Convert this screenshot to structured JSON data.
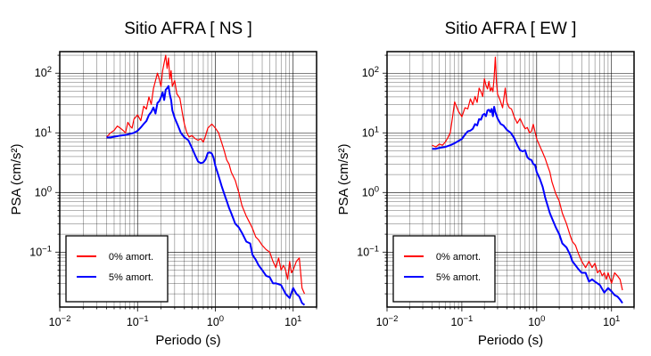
{
  "chart_data": [
    {
      "type": "line",
      "title": "Sitio AFRA [ NS ]",
      "xlabel": "Periodo (s)",
      "ylabel": "PSA (cm/s²)",
      "xscale": "log",
      "yscale": "log",
      "xlim": [
        0.01,
        20
      ],
      "ylim": [
        0.012,
        230
      ],
      "xticks": [
        {
          "v": 0.01,
          "b": "10",
          "e": "−2"
        },
        {
          "v": 0.1,
          "b": "10",
          "e": "−1"
        },
        {
          "v": 1,
          "b": "10",
          "e": "0"
        },
        {
          "v": 10,
          "b": "10",
          "e": "1"
        }
      ],
      "yticks": [
        {
          "v": 0.1,
          "b": "10",
          "e": "−1"
        },
        {
          "v": 1,
          "b": "10",
          "e": "0"
        },
        {
          "v": 10,
          "b": "10",
          "e": "1"
        },
        {
          "v": 100,
          "b": "10",
          "e": "2"
        }
      ],
      "grid": true,
      "legend_position": "bottom-left",
      "series": [
        {
          "name": "0% amort.",
          "color": "#ff0000",
          "x": [
            0.04,
            0.045,
            0.05,
            0.055,
            0.06,
            0.065,
            0.07,
            0.075,
            0.08,
            0.085,
            0.09,
            0.1,
            0.11,
            0.12,
            0.13,
            0.14,
            0.15,
            0.16,
            0.17,
            0.18,
            0.19,
            0.2,
            0.21,
            0.22,
            0.23,
            0.24,
            0.25,
            0.26,
            0.27,
            0.28,
            0.3,
            0.32,
            0.35,
            0.38,
            0.4,
            0.43,
            0.46,
            0.5,
            0.55,
            0.6,
            0.65,
            0.7,
            0.75,
            0.8,
            0.85,
            0.9,
            0.95,
            1.0,
            1.1,
            1.2,
            1.3,
            1.4,
            1.5,
            1.6,
            1.8,
            2.0,
            2.2,
            2.5,
            2.8,
            3.0,
            3.3,
            3.6,
            4.0,
            4.5,
            5.0,
            5.5,
            6.0,
            6.5,
            7.0,
            7.5,
            8.0,
            8.5,
            9.0,
            9.5,
            10,
            11,
            12,
            13,
            14
          ],
          "y": [
            8.5,
            10,
            11,
            13,
            12,
            11,
            10,
            15,
            13,
            12,
            17,
            20,
            16,
            28,
            25,
            40,
            30,
            55,
            75,
            100,
            80,
            60,
            110,
            150,
            200,
            120,
            180,
            80,
            110,
            60,
            75,
            45,
            38,
            20,
            14,
            10,
            8.5,
            9,
            8,
            7.5,
            8,
            7,
            9,
            12,
            13,
            14,
            13,
            12,
            10,
            7,
            5,
            3.5,
            3,
            2.2,
            1.6,
            1,
            0.6,
            0.4,
            0.3,
            0.25,
            0.18,
            0.16,
            0.13,
            0.11,
            0.1,
            0.07,
            0.055,
            0.08,
            0.05,
            0.06,
            0.05,
            0.035,
            0.07,
            0.045,
            0.05,
            0.07,
            0.08,
            0.025,
            0.02
          ]
        },
        {
          "name": "5% amort.",
          "color": "#0000ff",
          "x": [
            0.04,
            0.045,
            0.05,
            0.06,
            0.07,
            0.08,
            0.09,
            0.1,
            0.11,
            0.12,
            0.13,
            0.14,
            0.15,
            0.16,
            0.17,
            0.18,
            0.19,
            0.2,
            0.21,
            0.22,
            0.23,
            0.24,
            0.25,
            0.26,
            0.27,
            0.28,
            0.3,
            0.33,
            0.36,
            0.4,
            0.45,
            0.5,
            0.55,
            0.6,
            0.65,
            0.7,
            0.75,
            0.8,
            0.85,
            0.9,
            0.95,
            1.0,
            1.1,
            1.2,
            1.3,
            1.4,
            1.5,
            1.6,
            1.8,
            2.0,
            2.2,
            2.5,
            2.8,
            3.0,
            3.3,
            3.6,
            4.0,
            4.5,
            5.0,
            5.5,
            6.0,
            7.0,
            8.0,
            9.0,
            10,
            11,
            12,
            13,
            14
          ],
          "y": [
            8.4,
            8.4,
            8.6,
            9,
            9.2,
            9.6,
            10,
            10.8,
            12.3,
            14.1,
            15.8,
            19.9,
            22.3,
            26.6,
            21.1,
            31.6,
            33.9,
            39.5,
            47.7,
            35.5,
            52.6,
            56.2,
            60.8,
            43.7,
            35.5,
            23.8,
            17.8,
            13.3,
            10,
            8.4,
            7.5,
            5.6,
            4.2,
            3.3,
            3.1,
            3.2,
            3.6,
            4.6,
            4.7,
            4.5,
            3.8,
            2.8,
            1.9,
            1.3,
            0.95,
            0.72,
            0.55,
            0.45,
            0.3,
            0.26,
            0.21,
            0.15,
            0.14,
            0.09,
            0.075,
            0.06,
            0.05,
            0.04,
            0.038,
            0.03,
            0.03,
            0.028,
            0.02,
            0.017,
            0.025,
            0.02,
            0.018,
            0.014,
            0.013
          ]
        }
      ]
    },
    {
      "type": "line",
      "title": "Sitio AFRA [ EW ]",
      "xlabel": "Periodo (s)",
      "ylabel": "PSA (cm/s²)",
      "xscale": "log",
      "yscale": "log",
      "xlim": [
        0.01,
        20
      ],
      "ylim": [
        0.012,
        230
      ],
      "xticks": [
        {
          "v": 0.01,
          "b": "10",
          "e": "−2"
        },
        {
          "v": 0.1,
          "b": "10",
          "e": "−1"
        },
        {
          "v": 1,
          "b": "10",
          "e": "0"
        },
        {
          "v": 10,
          "b": "10",
          "e": "1"
        }
      ],
      "yticks": [
        {
          "v": 0.1,
          "b": "10",
          "e": "−1"
        },
        {
          "v": 1,
          "b": "10",
          "e": "0"
        },
        {
          "v": 10,
          "b": "10",
          "e": "1"
        },
        {
          "v": 100,
          "b": "10",
          "e": "2"
        }
      ],
      "grid": true,
      "legend_position": "bottom-left",
      "series": [
        {
          "name": "0% amort.",
          "color": "#ff0000",
          "x": [
            0.04,
            0.045,
            0.05,
            0.055,
            0.06,
            0.065,
            0.07,
            0.075,
            0.08,
            0.09,
            0.1,
            0.11,
            0.12,
            0.13,
            0.14,
            0.15,
            0.16,
            0.17,
            0.18,
            0.19,
            0.2,
            0.21,
            0.22,
            0.23,
            0.24,
            0.25,
            0.26,
            0.27,
            0.28,
            0.29,
            0.3,
            0.32,
            0.35,
            0.38,
            0.4,
            0.43,
            0.46,
            0.5,
            0.55,
            0.6,
            0.65,
            0.7,
            0.75,
            0.8,
            0.85,
            0.9,
            1.0,
            1.1,
            1.2,
            1.3,
            1.4,
            1.5,
            1.6,
            1.8,
            2.0,
            2.2,
            2.5,
            2.8,
            3.0,
            3.3,
            3.6,
            4.0,
            4.5,
            5.0,
            5.5,
            6.0,
            6.5,
            7.0,
            7.5,
            8.0,
            8.5,
            9.0,
            10,
            11,
            12,
            13,
            14
          ],
          "y": [
            6.2,
            5.8,
            6.5,
            6.2,
            7,
            8.3,
            10,
            18.3,
            33,
            23,
            18.6,
            26.3,
            25.2,
            37.1,
            29.5,
            40.7,
            32.4,
            56.2,
            49,
            40.7,
            81,
            62.5,
            54.5,
            73,
            50.3,
            57,
            49,
            85.2,
            186,
            70,
            44.6,
            37.1,
            26.3,
            56.2,
            32.4,
            26.3,
            25.2,
            18.6,
            14.5,
            17.4,
            13.9,
            11.7,
            12.3,
            10,
            10.6,
            13.9,
            7.9,
            6,
            4.7,
            3.7,
            2.8,
            2.2,
            1.5,
            0.95,
            0.72,
            0.45,
            0.3,
            0.19,
            0.15,
            0.13,
            0.095,
            0.07,
            0.055,
            0.07,
            0.055,
            0.065,
            0.045,
            0.05,
            0.04,
            0.045,
            0.035,
            0.045,
            0.03,
            0.045,
            0.04,
            0.035,
            0.023
          ]
        },
        {
          "name": "5% amort.",
          "color": "#0000ff",
          "x": [
            0.04,
            0.045,
            0.05,
            0.06,
            0.07,
            0.08,
            0.09,
            0.1,
            0.11,
            0.12,
            0.13,
            0.14,
            0.15,
            0.16,
            0.17,
            0.18,
            0.19,
            0.2,
            0.21,
            0.22,
            0.23,
            0.24,
            0.25,
            0.26,
            0.27,
            0.28,
            0.3,
            0.33,
            0.36,
            0.4,
            0.45,
            0.5,
            0.55,
            0.6,
            0.65,
            0.7,
            0.75,
            0.8,
            0.85,
            0.9,
            0.95,
            1.0,
            1.1,
            1.2,
            1.3,
            1.4,
            1.5,
            1.6,
            1.8,
            2.0,
            2.2,
            2.5,
            2.8,
            3.0,
            3.3,
            3.6,
            4.0,
            4.5,
            5.0,
            5.5,
            6.0,
            7.0,
            8.0,
            9.0,
            10,
            11,
            12,
            13,
            14
          ],
          "y": [
            5.4,
            5.4,
            5.6,
            5.8,
            6.2,
            6.7,
            7.3,
            7.9,
            9.3,
            10.6,
            10.9,
            11.7,
            14,
            13.3,
            17,
            16.6,
            19.9,
            20.8,
            19,
            23.8,
            24.4,
            22.3,
            25.2,
            19,
            27.3,
            22.3,
            17.4,
            14.1,
            13.3,
            11.2,
            10,
            8.2,
            6.2,
            5.1,
            4.9,
            5.1,
            3.9,
            3.6,
            3.5,
            3,
            2.9,
            2.2,
            1.7,
            1.25,
            0.82,
            0.6,
            0.45,
            0.37,
            0.26,
            0.2,
            0.14,
            0.12,
            0.09,
            0.07,
            0.06,
            0.052,
            0.045,
            0.045,
            0.032,
            0.035,
            0.032,
            0.028,
            0.021,
            0.025,
            0.022,
            0.019,
            0.018,
            0.016,
            0.014
          ]
        }
      ]
    }
  ]
}
